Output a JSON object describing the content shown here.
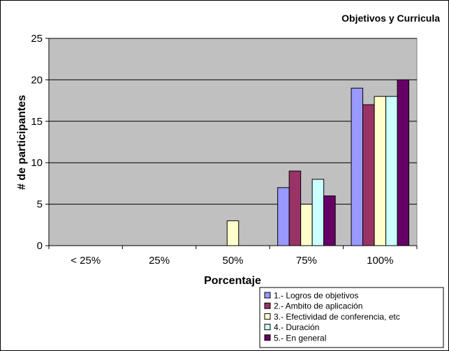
{
  "chart_data": {
    "type": "bar",
    "title": "Objetivos y Curricula",
    "xlabel": "Porcentaje",
    "ylabel": "# de participantes",
    "categories": [
      "< 25%",
      "25%",
      "50%",
      "75%",
      "100%"
    ],
    "ylim": [
      0,
      25
    ],
    "yticks": [
      0,
      5,
      10,
      15,
      20,
      25
    ],
    "grid": true,
    "legend_position": "bottom-right",
    "plot_background": "#c0c0c0",
    "series": [
      {
        "name": "1.- Logros de objetivos",
        "color": "#9999ff",
        "values": [
          0,
          0,
          0,
          7,
          19
        ]
      },
      {
        "name": "2.- Ambito de aplicación",
        "color": "#993366",
        "values": [
          0,
          0,
          0,
          9,
          17
        ]
      },
      {
        "name": "3.- Efectividad de conferencia, etc",
        "color": "#ffffcc",
        "values": [
          0,
          0,
          3,
          5,
          18
        ]
      },
      {
        "name": "4.- Duración",
        "color": "#ccffff",
        "values": [
          0,
          0,
          0,
          8,
          18
        ]
      },
      {
        "name": "5.- En general",
        "color": "#660066",
        "values": [
          0,
          0,
          0,
          6,
          20
        ]
      }
    ]
  }
}
